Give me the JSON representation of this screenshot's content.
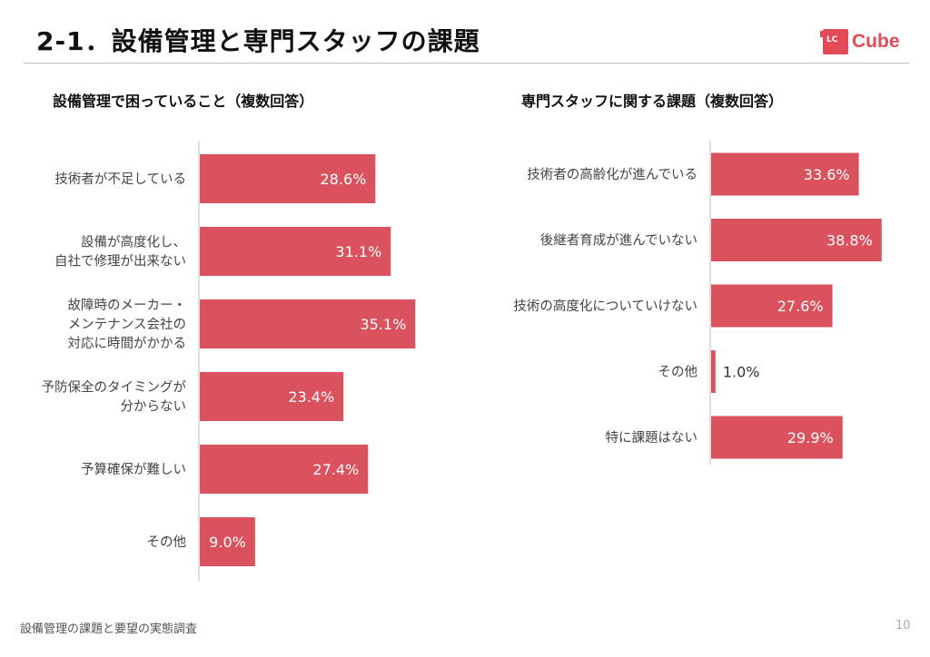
{
  "header": {
    "title": "2-1．設備管理と専門スタッフの課題",
    "logo_mark": "LC",
    "logo_text": "Cube"
  },
  "colors": {
    "bar": "#d9525e",
    "axis": "#c8c8c8",
    "label": "#444444",
    "value_inside": "#ffffff",
    "value_outside": "#333333",
    "brand": "#e24a55"
  },
  "chart_data": [
    {
      "type": "bar",
      "orientation": "horizontal",
      "title": "設備管理で困っていること（複数回答）",
      "categories": [
        [
          "技術者が不足している"
        ],
        [
          "設備が高度化し、",
          "自社で修理が出来ない"
        ],
        [
          "故障時のメーカー・",
          "メンテナンス会社の",
          "対応に時間がかかる"
        ],
        [
          "予防保全のタイミングが",
          "分からない"
        ],
        [
          "予算確保が難しい"
        ],
        [
          "その他"
        ]
      ],
      "values": [
        28.6,
        31.1,
        35.1,
        23.4,
        27.4,
        9.0
      ],
      "value_labels": [
        "28.6%",
        "31.1%",
        "35.1%",
        "23.4%",
        "27.4%",
        "9.0%"
      ],
      "xlim": [
        0,
        100
      ],
      "grid": false,
      "legend": "none"
    },
    {
      "type": "bar",
      "orientation": "horizontal",
      "title": "専門スタッフに関する課題（複数回答）",
      "categories": [
        [
          "技術者の高齢化が進んでいる"
        ],
        [
          "後継者育成が進んでいない"
        ],
        [
          "技術の高度化についていけない"
        ],
        [
          "その他"
        ],
        [
          "特に課題はない"
        ]
      ],
      "values": [
        33.6,
        38.8,
        27.6,
        1.0,
        29.9
      ],
      "value_labels": [
        "33.6%",
        "38.8%",
        "27.6%",
        "1.0%",
        "29.9%"
      ],
      "xlim": [
        0,
        100
      ],
      "grid": false,
      "legend": "none"
    }
  ],
  "footer": {
    "text": "設備管理の課題と要望の実態調査",
    "page_number": "10"
  }
}
